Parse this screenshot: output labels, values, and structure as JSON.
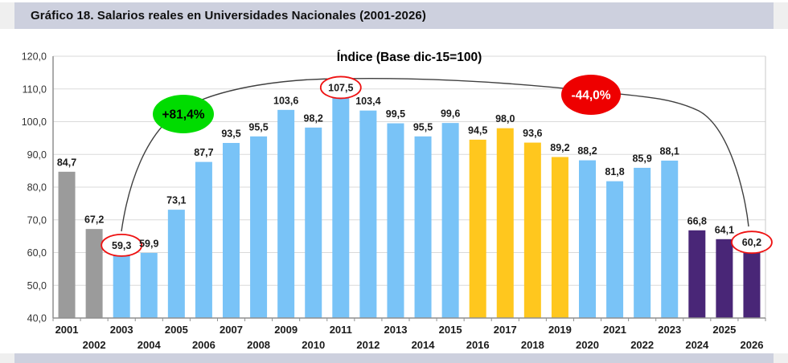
{
  "header": {
    "title": "Gráfico 18. Salarios reales en Universidades Nacionales (2001-2026)"
  },
  "colors": {
    "gray": "#9B9B9B",
    "blue": "#79C3F7",
    "yellow": "#FFC71E",
    "purple": "#492677",
    "highlight_green": "#00DC00",
    "highlight_red": "#EE0000",
    "circle_red": "#EE1111",
    "header_bg": "#CDD0DE",
    "grid": "#DADADA",
    "plot_border": "#C9C9C9",
    "axis": "#8F8F8F",
    "curve": "#3F3F3F",
    "label_text": "#1A1A1A",
    "tick_text": "#333333"
  },
  "chart_data": {
    "type": "bar",
    "title": "Índice (Base dic-15=100)",
    "categories": [
      "2001",
      "2002",
      "2003",
      "2004",
      "2005",
      "2006",
      "2007",
      "2008",
      "2009",
      "2010",
      "2011",
      "2012",
      "2013",
      "2014",
      "2015",
      "2016",
      "2017",
      "2018",
      "2019",
      "2020",
      "2021",
      "2022",
      "2023",
      "2024",
      "2025",
      "2026"
    ],
    "values": [
      84.7,
      67.2,
      59.3,
      59.9,
      73.1,
      87.7,
      93.5,
      95.5,
      103.6,
      98.2,
      107.5,
      103.4,
      99.5,
      95.5,
      99.6,
      94.5,
      98.0,
      93.6,
      89.2,
      88.2,
      81.8,
      85.9,
      88.1,
      66.8,
      64.1,
      60.2
    ],
    "bar_color_keys": [
      "gray",
      "gray",
      "blue",
      "blue",
      "blue",
      "blue",
      "blue",
      "blue",
      "blue",
      "blue",
      "blue",
      "blue",
      "blue",
      "blue",
      "blue",
      "yellow",
      "yellow",
      "yellow",
      "yellow",
      "blue",
      "blue",
      "blue",
      "blue",
      "purple",
      "purple",
      "purple"
    ],
    "circled_categories": [
      "2003",
      "2011",
      "2026"
    ],
    "annotations": [
      {
        "text": "+81,4%",
        "shape": "ellipse",
        "fill_key": "highlight_green",
        "text_color": "#000000"
      },
      {
        "text": "-44,0%",
        "shape": "ellipse",
        "fill_key": "highlight_red",
        "text_color": "#FFFFFF"
      }
    ],
    "xlabel": "",
    "ylabel": "",
    "ylim": [
      40,
      120
    ],
    "ytick_step": 10,
    "ytick_labels": [
      "40,0",
      "50,0",
      "60,0",
      "70,0",
      "80,0",
      "90,0",
      "100,0",
      "110,0",
      "120,0"
    ],
    "grid": true,
    "legend": false,
    "decimal_separator": ","
  }
}
